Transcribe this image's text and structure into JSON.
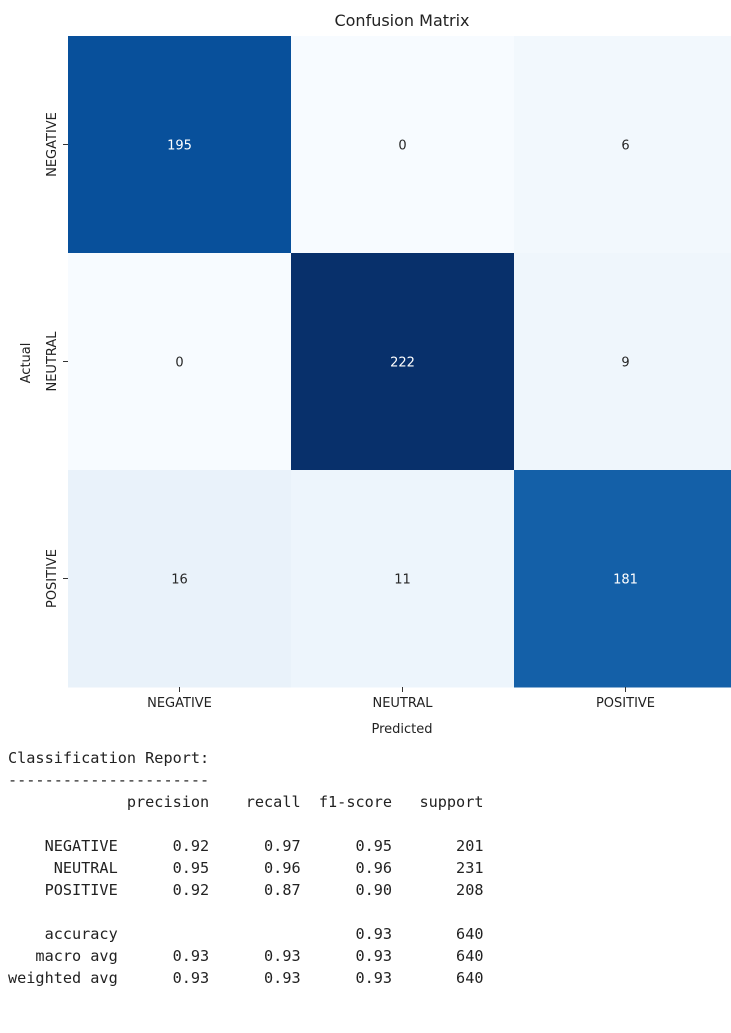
{
  "chart_data": {
    "type": "heatmap",
    "title": "Confusion Matrix",
    "xlabel": "Predicted",
    "ylabel": "Actual",
    "x_categories": [
      "NEGATIVE",
      "NEUTRAL",
      "POSITIVE"
    ],
    "y_categories": [
      "NEGATIVE",
      "NEUTRAL",
      "POSITIVE"
    ],
    "values": [
      [
        195,
        0,
        6
      ],
      [
        0,
        222,
        9
      ],
      [
        16,
        11,
        181
      ]
    ],
    "colormap": "Blues",
    "color_low": "#f7fbff",
    "color_high": "#08306b",
    "colorbar": false
  },
  "report": {
    "title": "Classification Report:",
    "divider": "----------------------",
    "headers": [
      "precision",
      "recall",
      "f1-score",
      "support"
    ],
    "rows": [
      {
        "label": "NEGATIVE",
        "precision": "0.92",
        "recall": "0.97",
        "f1": "0.95",
        "support": "201"
      },
      {
        "label": "NEUTRAL",
        "precision": "0.95",
        "recall": "0.96",
        "f1": "0.96",
        "support": "231"
      },
      {
        "label": "POSITIVE",
        "precision": "0.92",
        "recall": "0.87",
        "f1": "0.90",
        "support": "208"
      }
    ],
    "summary": [
      {
        "label": "accuracy",
        "precision": "",
        "recall": "",
        "f1": "0.93",
        "support": "640"
      },
      {
        "label": "macro avg",
        "precision": "0.93",
        "recall": "0.93",
        "f1": "0.93",
        "support": "640"
      },
      {
        "label": "weighted avg",
        "precision": "0.93",
        "recall": "0.93",
        "f1": "0.93",
        "support": "640"
      }
    ]
  }
}
